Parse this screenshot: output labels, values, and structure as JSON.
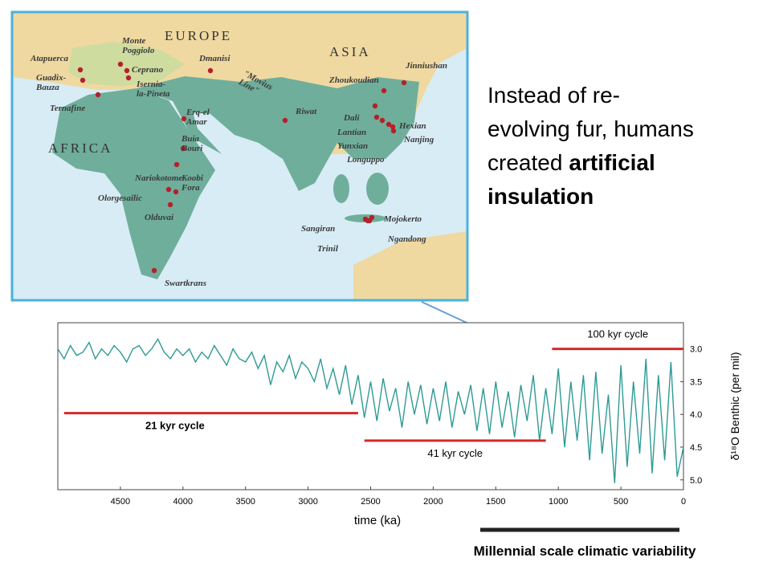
{
  "slide_text": {
    "line1": "Instead of re-",
    "line2": "evolving fur, humans",
    "line3": "created",
    "line3_bold": "artificial",
    "line4_bold": "insulation"
  },
  "map": {
    "regions": [
      "EUROPE",
      "ASIA",
      "AFRICA"
    ],
    "movius_line": [
      "\"Movius",
      "Line\""
    ],
    "sites": [
      {
        "lines": [
          "Atapuerca"
        ]
      },
      {
        "lines": [
          "Guadix-",
          "Bauza"
        ]
      },
      {
        "lines": [
          "Monte",
          "Poggiolo"
        ]
      },
      {
        "lines": [
          "Ceprano"
        ]
      },
      {
        "lines": [
          "Isernia-",
          "la-Pineta"
        ]
      },
      {
        "lines": [
          "Dmanisi"
        ]
      },
      {
        "lines": [
          "Ternafine"
        ]
      },
      {
        "lines": [
          "Erq-el",
          "Amar"
        ]
      },
      {
        "lines": [
          "Riwat"
        ]
      },
      {
        "lines": [
          "Buia",
          "Bouri"
        ]
      },
      {
        "lines": [
          "Nariokotome"
        ]
      },
      {
        "lines": [
          "Koobi",
          "Fora"
        ]
      },
      {
        "lines": [
          "Olorgesailic"
        ]
      },
      {
        "lines": [
          "Olduvai"
        ]
      },
      {
        "lines": [
          "Swartkrans"
        ]
      },
      {
        "lines": [
          "Jinniushan"
        ]
      },
      {
        "lines": [
          "Zhoukoudian"
        ]
      },
      {
        "lines": [
          "Dali"
        ]
      },
      {
        "lines": [
          "Lantian"
        ]
      },
      {
        "lines": [
          "Yunxian"
        ]
      },
      {
        "lines": [
          "Longuppo"
        ]
      },
      {
        "lines": [
          "Hexian"
        ]
      },
      {
        "lines": [
          "Nanjing"
        ]
      },
      {
        "lines": [
          "Sangiran"
        ]
      },
      {
        "lines": [
          "Mojokerto"
        ]
      },
      {
        "lines": [
          "Trinil"
        ]
      },
      {
        "lines": [
          "Ngandong"
        ]
      }
    ]
  },
  "chart_data": {
    "type": "line",
    "xlabel": "time (ka)",
    "ylabel": "δ¹⁸O Benthic (per mil)",
    "xlim": [
      5000,
      0
    ],
    "xticks": [
      4500,
      4000,
      3500,
      3000,
      2500,
      2000,
      1500,
      1000,
      500,
      0
    ],
    "ylim": [
      5.15,
      2.6
    ],
    "yticks": [
      {
        "value": 3,
        "label": "3.0"
      },
      3.5,
      {
        "value": 4,
        "label": "4.0"
      },
      4.5,
      {
        "value": 5,
        "label": "5.0"
      }
    ],
    "series": [
      {
        "color": "#2e9a94",
        "x": [
          5000,
          4950,
          4900,
          4850,
          4800,
          4750,
          4700,
          4650,
          4600,
          4550,
          4500,
          4450,
          4400,
          4350,
          4300,
          4250,
          4200,
          4150,
          4100,
          4050,
          4000,
          3950,
          3900,
          3850,
          3800,
          3750,
          3700,
          3650,
          3600,
          3550,
          3500,
          3450,
          3400,
          3350,
          3300,
          3250,
          3200,
          3150,
          3100,
          3050,
          3000,
          2950,
          2900,
          2850,
          2800,
          2750,
          2700,
          2650,
          2600,
          2550,
          2500,
          2450,
          2400,
          2350,
          2300,
          2250,
          2200,
          2150,
          2100,
          2050,
          2000,
          1950,
          1900,
          1850,
          1800,
          1750,
          1700,
          1650,
          1600,
          1550,
          1500,
          1450,
          1400,
          1350,
          1300,
          1250,
          1200,
          1150,
          1100,
          1050,
          1000,
          950,
          900,
          850,
          800,
          750,
          700,
          650,
          600,
          550,
          500,
          450,
          400,
          350,
          300,
          250,
          200,
          150,
          100,
          50,
          0
        ],
        "values": [
          3.0,
          3.15,
          2.95,
          3.1,
          3.05,
          2.9,
          3.15,
          3.0,
          3.1,
          2.95,
          3.05,
          3.2,
          3.0,
          2.95,
          3.1,
          3.0,
          2.85,
          3.05,
          3.15,
          3.0,
          3.1,
          3.0,
          3.2,
          3.05,
          3.15,
          2.95,
          3.1,
          3.25,
          3.0,
          3.15,
          3.2,
          3.05,
          3.3,
          3.1,
          3.55,
          3.2,
          3.35,
          3.1,
          3.45,
          3.2,
          3.3,
          3.5,
          3.15,
          3.6,
          3.3,
          3.7,
          3.25,
          3.85,
          3.4,
          4.05,
          3.5,
          4.1,
          3.45,
          3.95,
          3.6,
          4.2,
          3.5,
          4.0,
          3.55,
          4.15,
          3.6,
          4.1,
          3.5,
          4.2,
          3.65,
          4.0,
          3.55,
          4.25,
          3.6,
          4.3,
          3.5,
          4.2,
          3.65,
          4.35,
          3.55,
          4.1,
          3.4,
          4.4,
          3.6,
          4.3,
          3.3,
          4.5,
          3.5,
          4.4,
          3.4,
          4.7,
          3.35,
          4.6,
          3.7,
          5.05,
          3.25,
          4.8,
          3.5,
          4.6,
          3.15,
          4.9,
          3.4,
          4.7,
          3.2,
          4.95,
          4.5
        ]
      }
    ],
    "annotations": [
      {
        "text": "100 kyr cycle",
        "x": [
          1050,
          0
        ],
        "y": 3.0,
        "color": "#d42a2a"
      },
      {
        "text": "21 kyr cycle",
        "x": [
          4950,
          2600
        ],
        "y": 3.98,
        "color": "#d42a2a"
      },
      {
        "text": "41 kyr cycle",
        "x": [
          2550,
          1100
        ],
        "y": 4.4,
        "color": "#d42a2a"
      }
    ],
    "footnote": "Millennial scale climatic variability"
  }
}
